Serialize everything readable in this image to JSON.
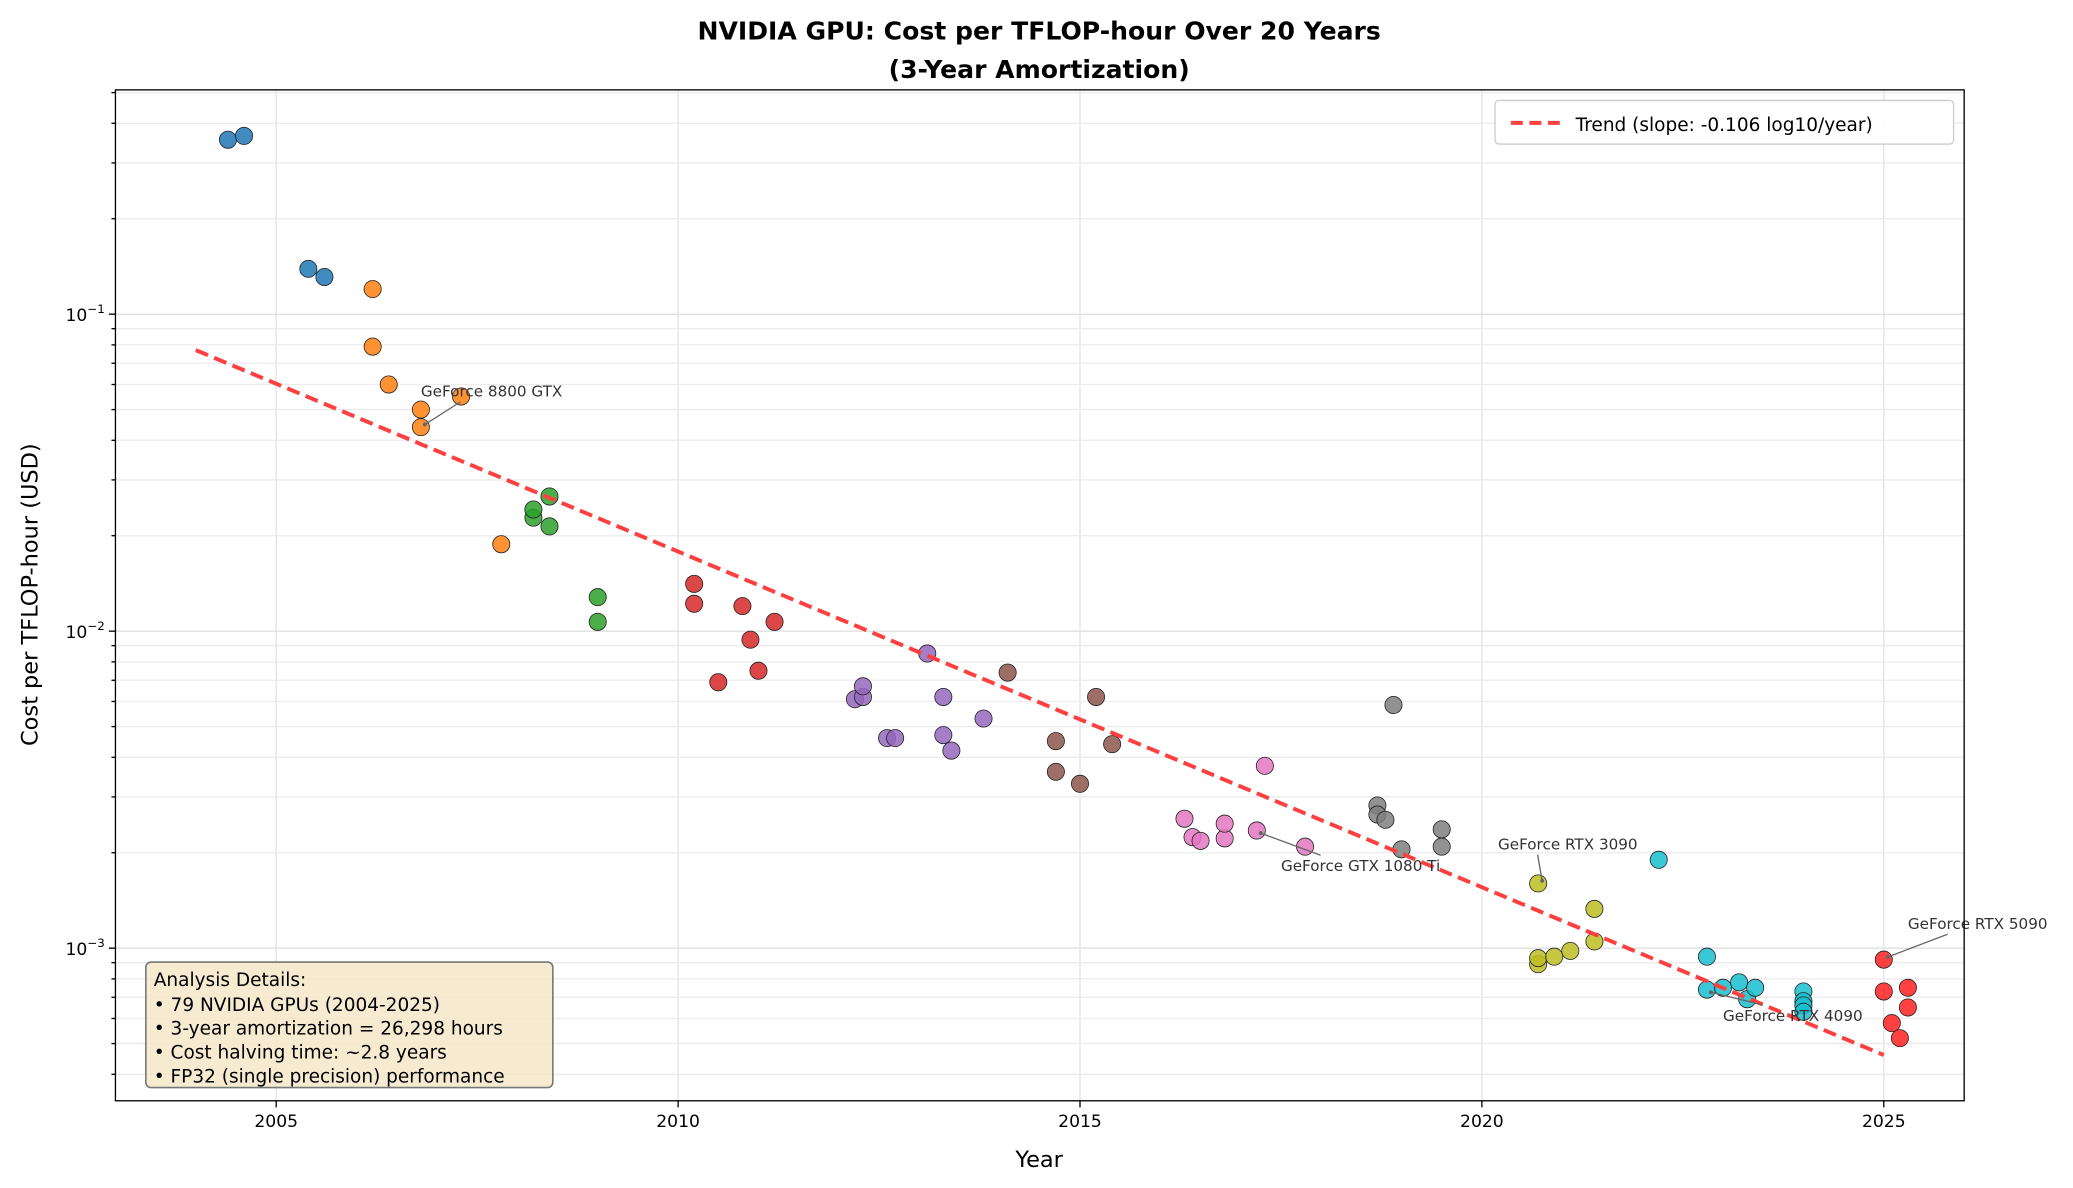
{
  "chart_data": {
    "type": "scatter",
    "title": [
      "NVIDIA GPU: Cost per TFLOP-hour Over 20 Years",
      "(3-Year Amortization)"
    ],
    "xlabel": "Year",
    "ylabel": "Cost per TFLOP-hour (USD)",
    "xlim": [
      2003.0,
      2026.0
    ],
    "ylim": [
      0.00033,
      0.51
    ],
    "yscale": "log",
    "grid": true,
    "xticks": [
      2005,
      2010,
      2015,
      2020,
      2025
    ],
    "yticks": [
      {
        "value": 0.1,
        "base": "10",
        "exp": "−1"
      },
      {
        "value": 0.01,
        "base": "10",
        "exp": "−2"
      },
      {
        "value": 0.001,
        "base": "10",
        "exp": "−3"
      }
    ],
    "legend": {
      "placement": "top-right",
      "entries": [
        "Trend (slope: -0.106 log10/year)"
      ]
    },
    "trend": {
      "color": "#ff4040",
      "style": "dashed",
      "points": [
        [
          2004.0,
          0.077
        ],
        [
          2025.0,
          0.00046
        ]
      ]
    },
    "series": [
      {
        "color": "#1f77b4",
        "points": [
          [
            2004.4,
            0.355
          ],
          [
            2004.6,
            0.365
          ],
          [
            2005.4,
            0.139
          ],
          [
            2005.6,
            0.131
          ]
        ]
      },
      {
        "color": "#ff7f0e",
        "points": [
          [
            2006.2,
            0.12
          ],
          [
            2006.2,
            0.079
          ],
          [
            2006.4,
            0.06
          ],
          [
            2006.8,
            0.05
          ],
          [
            2006.8,
            0.044
          ],
          [
            2007.3,
            0.055
          ],
          [
            2007.8,
            0.0188
          ]
        ]
      },
      {
        "color": "#2ca02c",
        "points": [
          [
            2008.2,
            0.0228
          ],
          [
            2008.2,
            0.0242
          ],
          [
            2008.4,
            0.0266
          ],
          [
            2008.4,
            0.0214
          ],
          [
            2009.0,
            0.0128
          ],
          [
            2009.0,
            0.0107
          ]
        ]
      },
      {
        "color": "#d62728",
        "points": [
          [
            2010.2,
            0.0141
          ],
          [
            2010.2,
            0.0122
          ],
          [
            2010.5,
            0.0069
          ],
          [
            2010.8,
            0.012
          ],
          [
            2010.9,
            0.0094
          ],
          [
            2011.0,
            0.0075
          ],
          [
            2011.2,
            0.0107
          ]
        ]
      },
      {
        "color": "#9467bd",
        "points": [
          [
            2012.2,
            0.0061
          ],
          [
            2012.3,
            0.0062
          ],
          [
            2012.3,
            0.0067
          ],
          [
            2012.6,
            0.0046
          ],
          [
            2012.7,
            0.0046
          ],
          [
            2013.1,
            0.0085
          ],
          [
            2013.3,
            0.0062
          ],
          [
            2013.3,
            0.0047
          ],
          [
            2013.4,
            0.0042
          ],
          [
            2013.8,
            0.0053
          ]
        ]
      },
      {
        "color": "#8c564b",
        "points": [
          [
            2014.1,
            0.0074
          ],
          [
            2014.7,
            0.0045
          ],
          [
            2014.7,
            0.0036
          ],
          [
            2015.0,
            0.0033
          ],
          [
            2015.2,
            0.0062
          ],
          [
            2015.4,
            0.0044
          ]
        ]
      },
      {
        "color": "#e377c2",
        "points": [
          [
            2016.3,
            0.00256
          ],
          [
            2016.4,
            0.00224
          ],
          [
            2016.5,
            0.00218
          ],
          [
            2016.8,
            0.00222
          ],
          [
            2016.8,
            0.00247
          ],
          [
            2017.2,
            0.00235
          ],
          [
            2017.3,
            0.00376
          ],
          [
            2017.8,
            0.00209
          ]
        ]
      },
      {
        "color": "#7f7f7f",
        "points": [
          [
            2018.7,
            0.00282
          ],
          [
            2018.7,
            0.00264
          ],
          [
            2018.8,
            0.00254
          ],
          [
            2018.9,
            0.00585
          ],
          [
            2019.0,
            0.00205
          ],
          [
            2019.5,
            0.00237
          ],
          [
            2019.5,
            0.00209
          ]
        ]
      },
      {
        "color": "#bcbd22",
        "points": [
          [
            2020.7,
            0.0016
          ],
          [
            2020.7,
            0.00089
          ],
          [
            2020.7,
            0.00093
          ],
          [
            2020.9,
            0.00094
          ],
          [
            2021.1,
            0.00098
          ],
          [
            2021.4,
            0.00133
          ],
          [
            2021.4,
            0.00105
          ]
        ]
      },
      {
        "color": "#17becf",
        "points": [
          [
            2022.2,
            0.0019
          ],
          [
            2022.8,
            0.00074
          ],
          [
            2022.8,
            0.00094
          ],
          [
            2023.0,
            0.00075
          ],
          [
            2023.2,
            0.00078
          ],
          [
            2023.3,
            0.00069
          ],
          [
            2023.4,
            0.00075
          ],
          [
            2024.0,
            0.00073
          ],
          [
            2024.0,
            0.00068
          ],
          [
            2024.0,
            0.00066
          ],
          [
            2024.0,
            0.00063
          ]
        ]
      },
      {
        "color": "#ff2020",
        "points": [
          [
            2025.0,
            0.00092
          ],
          [
            2025.0,
            0.00073
          ],
          [
            2025.1,
            0.00058
          ],
          [
            2025.2,
            0.00052
          ],
          [
            2025.3,
            0.00065
          ],
          [
            2025.3,
            0.00075
          ]
        ]
      }
    ],
    "annotations": [
      {
        "text": "GeForce 8800 GTX",
        "target": [
          2006.8,
          0.044
        ],
        "text_at": [
          2006.8,
          0.055
        ]
      },
      {
        "text": "GeForce GTX 1080 Ti",
        "target": [
          2017.2,
          0.00235
        ],
        "text_at": [
          2017.5,
          0.00175
        ]
      },
      {
        "text": "GeForce RTX 3090",
        "target": [
          2020.7,
          0.0016
        ],
        "text_at": [
          2020.2,
          0.00205
        ]
      },
      {
        "text": "GeForce RTX 4090",
        "target": [
          2022.8,
          0.00074
        ],
        "text_at": [
          2023.0,
          0.00059
        ]
      },
      {
        "text": "GeForce RTX 5090",
        "target": [
          2025.0,
          0.00092
        ],
        "text_at": [
          2025.3,
          0.00115
        ]
      }
    ],
    "info_box": {
      "title": "Analysis Details:",
      "lines": [
        "• 79 NVIDIA GPUs (2004-2025)",
        "• 3-year amortization = 26,298 hours",
        "• Cost halving time: ~2.8 years",
        "• FP32 (single precision) performance"
      ],
      "background": "#f5e6c8"
    }
  }
}
